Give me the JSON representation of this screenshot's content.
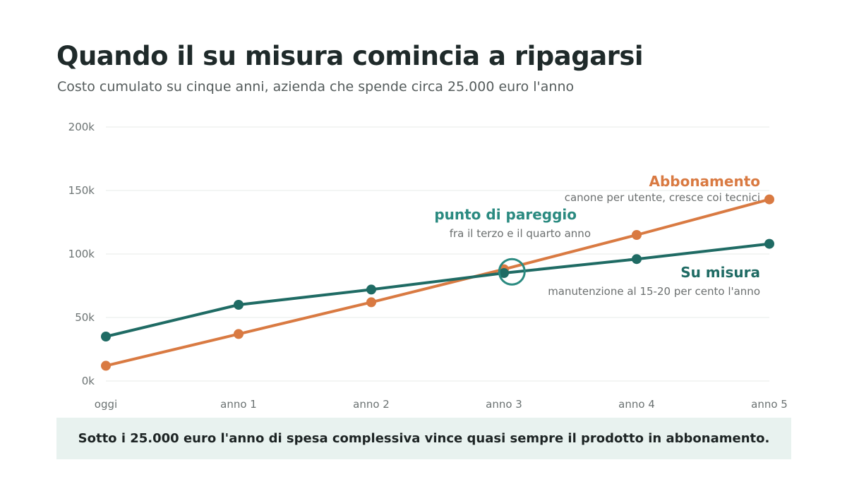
{
  "header": {
    "title": "Quando il su misura comincia a ripagarsi",
    "subtitle": "Costo cumulato su cinque anni, azienda che spende circa 25.000 euro l'anno"
  },
  "colors": {
    "subscription": "#d97a42",
    "custom": "#1f6b64",
    "breakeven": "#2a8a80",
    "callout_bg": "#e8f2ef"
  },
  "chart_data": {
    "type": "line",
    "categories": [
      "oggi",
      "anno 1",
      "anno 2",
      "anno 3",
      "anno 4",
      "anno 5"
    ],
    "ylim": [
      0,
      200000
    ],
    "y_ticks": [
      {
        "value": 0,
        "label": "0k"
      },
      {
        "value": 50000,
        "label": "50k"
      },
      {
        "value": 100000,
        "label": "100k"
      },
      {
        "value": 150000,
        "label": "150k"
      },
      {
        "value": 200000,
        "label": "200k"
      }
    ],
    "grid": true,
    "series": [
      {
        "key": "subscription",
        "name": "Abbonamento",
        "note": "canone per utente, cresce coi tecnici",
        "values": [
          12000,
          37000,
          62000,
          88000,
          115000,
          143000
        ]
      },
      {
        "key": "custom",
        "name": "Su misura",
        "note": "manutenzione al 15-20 per cento l'anno",
        "values": [
          35000,
          60000,
          72000,
          85000,
          96000,
          108000
        ]
      }
    ],
    "annotation": {
      "title": "punto di pareggio",
      "text": "fra il terzo e il quarto anno",
      "x_position": 3.06,
      "y_value": 86000
    }
  },
  "callout": {
    "text": "Sotto i 25.000 euro l'anno di spesa complessiva vince quasi sempre il prodotto in abbonamento."
  }
}
